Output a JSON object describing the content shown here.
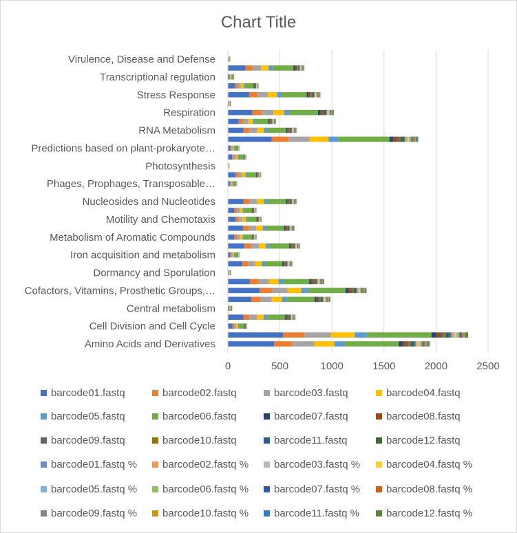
{
  "chart_data": {
    "type": "bar",
    "orientation": "horizontal",
    "stacked": true,
    "title": "Chart Title",
    "xlabel": "",
    "ylabel": "",
    "xlim": [
      0,
      2500
    ],
    "x_ticks": [
      "0",
      "500",
      "1000",
      "1500",
      "2000",
      "2500"
    ],
    "x_tick_values": [
      0,
      500,
      1000,
      1500,
      2000,
      2500
    ],
    "grid": "vertical",
    "legend_position": "bottom",
    "categories": [
      "Amino Acids and Derivatives",
      "",
      "Cell Division and Cell Cycle",
      "",
      "Central metabolism",
      "",
      "Cofactors, Vitamins, Prosthetic Groups,…",
      "",
      "Dormancy and Sporulation",
      "",
      "Iron acquisition and metabolism",
      "",
      "Metabolism of Aromatic Compounds",
      "",
      "Motility and Chemotaxis",
      "",
      "Nucleosides and Nucleotides",
      "",
      "Phages, Prophages, Transposable…",
      "",
      "Photosynthesis",
      "",
      "Predictions based on plant-prokaryote…",
      "",
      "RNA Metabolism",
      "",
      "Respiration",
      "",
      "Stress Response",
      "",
      "Transcriptional regulation",
      "",
      "Virulence, Disease and Defense"
    ],
    "series": [
      {
        "name": "barcode01.fastq",
        "color": "#4472C4",
        "values": [
          444,
          529,
          43,
          149,
          11,
          225,
          306,
          211,
          8,
          141,
          24,
          160,
          62,
          146,
          75,
          62,
          151,
          0,
          19,
          73,
          4,
          41,
          24,
          420,
          151,
          105,
          234,
          8,
          205,
          67,
          15,
          170,
          6
        ]
      },
      {
        "name": "barcode02.fastq",
        "color": "#ED7D31",
        "values": [
          174,
          207,
          17,
          58,
          4,
          88,
          120,
          83,
          3,
          55,
          10,
          62,
          24,
          57,
          29,
          24,
          59,
          0,
          8,
          29,
          2,
          16,
          10,
          164,
          59,
          41,
          92,
          3,
          80,
          26,
          6,
          67,
          2
        ]
      },
      {
        "name": "barcode03.fastq",
        "color": "#A5A5A5",
        "values": [
          212,
          253,
          20,
          71,
          5,
          108,
          146,
          101,
          4,
          68,
          12,
          76,
          30,
          70,
          36,
          30,
          72,
          0,
          9,
          35,
          2,
          19,
          12,
          201,
          72,
          50,
          112,
          4,
          98,
          32,
          7,
          81,
          3
        ]
      },
      {
        "name": "barcode04.fastq",
        "color": "#FFC000",
        "values": [
          193,
          230,
          19,
          65,
          5,
          98,
          133,
          92,
          3,
          62,
          11,
          69,
          27,
          64,
          32,
          27,
          66,
          0,
          8,
          32,
          2,
          18,
          11,
          183,
          66,
          46,
          102,
          3,
          89,
          29,
          6,
          74,
          3
        ]
      },
      {
        "name": "barcode05.fastq",
        "color": "#5B9BD5",
        "values": [
          97,
          115,
          9,
          32,
          2,
          49,
          66,
          46,
          2,
          31,
          5,
          35,
          14,
          32,
          16,
          13,
          33,
          0,
          4,
          16,
          1,
          9,
          5,
          91,
          33,
          23,
          51,
          2,
          45,
          15,
          3,
          37,
          1
        ]
      },
      {
        "name": "barcode06.fastq",
        "color": "#70AD47",
        "values": [
          521,
          622,
          50,
          175,
          12,
          264,
          359,
          248,
          9,
          166,
          29,
          187,
          73,
          171,
          87,
          73,
          177,
          0,
          23,
          86,
          5,
          48,
          29,
          493,
          177,
          123,
          275,
          9,
          241,
          79,
          17,
          200,
          7
        ]
      },
      {
        "name": "barcode07.fastq",
        "color": "#264478",
        "values": [
          39,
          46,
          4,
          13,
          1,
          20,
          27,
          18,
          1,
          12,
          2,
          14,
          5,
          13,
          6,
          5,
          13,
          0,
          2,
          6,
          0,
          4,
          2,
          37,
          13,
          9,
          20,
          1,
          18,
          6,
          1,
          15,
          1
        ]
      },
      {
        "name": "barcode08.fastq",
        "color": "#9E480E",
        "values": [
          29,
          35,
          3,
          10,
          1,
          15,
          20,
          14,
          0,
          9,
          2,
          10,
          4,
          10,
          5,
          4,
          10,
          0,
          1,
          5,
          0,
          3,
          2,
          27,
          10,
          7,
          15,
          0,
          13,
          4,
          1,
          11,
          0
        ]
      },
      {
        "name": "barcode09.fastq",
        "color": "#636363",
        "values": [
          29,
          35,
          3,
          10,
          1,
          15,
          20,
          14,
          0,
          9,
          2,
          10,
          4,
          10,
          5,
          4,
          10,
          0,
          1,
          5,
          0,
          3,
          2,
          27,
          10,
          7,
          15,
          0,
          13,
          4,
          1,
          11,
          0
        ]
      },
      {
        "name": "barcode10.fastq",
        "color": "#997300",
        "values": [
          19,
          23,
          2,
          6,
          0,
          10,
          13,
          9,
          0,
          6,
          1,
          7,
          3,
          6,
          3,
          3,
          7,
          0,
          1,
          3,
          0,
          2,
          1,
          18,
          7,
          5,
          10,
          0,
          9,
          3,
          1,
          7,
          0
        ]
      },
      {
        "name": "barcode11.fastq",
        "color": "#255E91",
        "values": [
          19,
          23,
          2,
          6,
          0,
          10,
          13,
          9,
          0,
          6,
          1,
          7,
          3,
          6,
          3,
          3,
          7,
          0,
          1,
          3,
          0,
          2,
          1,
          18,
          7,
          5,
          10,
          0,
          9,
          3,
          1,
          7,
          0
        ]
      },
      {
        "name": "barcode12.fastq",
        "color": "#43682B",
        "values": [
          19,
          23,
          2,
          6,
          0,
          10,
          13,
          9,
          0,
          6,
          1,
          7,
          3,
          6,
          3,
          3,
          7,
          0,
          1,
          3,
          0,
          2,
          1,
          18,
          7,
          5,
          10,
          0,
          9,
          3,
          1,
          7,
          0
        ]
      },
      {
        "name": "barcode01.fastq %",
        "color": "#698ED0",
        "values": [
          12,
          14,
          1,
          4,
          0,
          6,
          8,
          6,
          0,
          4,
          1,
          4,
          2,
          4,
          2,
          2,
          4,
          0,
          1,
          2,
          0,
          1,
          1,
          11,
          4,
          3,
          6,
          0,
          5,
          2,
          0,
          4,
          0
        ]
      },
      {
        "name": "barcode02.fastq %",
        "color": "#F1975A",
        "values": [
          12,
          14,
          1,
          4,
          0,
          6,
          8,
          6,
          0,
          4,
          1,
          4,
          2,
          4,
          2,
          2,
          4,
          0,
          1,
          2,
          0,
          1,
          1,
          11,
          4,
          3,
          6,
          0,
          5,
          2,
          0,
          4,
          0
        ]
      },
      {
        "name": "barcode03.fastq %",
        "color": "#B7B7B7",
        "values": [
          12,
          14,
          1,
          4,
          0,
          6,
          8,
          6,
          0,
          4,
          1,
          4,
          2,
          4,
          2,
          2,
          4,
          0,
          1,
          2,
          0,
          1,
          1,
          11,
          4,
          3,
          6,
          0,
          5,
          2,
          0,
          4,
          0
        ]
      },
      {
        "name": "barcode04.fastq %",
        "color": "#FFCD33",
        "values": [
          12,
          14,
          1,
          4,
          0,
          6,
          8,
          6,
          0,
          4,
          1,
          4,
          2,
          4,
          2,
          2,
          4,
          0,
          1,
          2,
          0,
          1,
          1,
          11,
          4,
          3,
          6,
          0,
          5,
          2,
          0,
          4,
          0
        ]
      },
      {
        "name": "barcode05.fastq %",
        "color": "#7CAFDD",
        "values": [
          12,
          14,
          1,
          4,
          0,
          6,
          8,
          6,
          0,
          4,
          1,
          4,
          2,
          4,
          2,
          2,
          4,
          0,
          1,
          2,
          0,
          1,
          1,
          11,
          4,
          3,
          6,
          0,
          5,
          2,
          0,
          4,
          0
        ]
      },
      {
        "name": "barcode06.fastq %",
        "color": "#8CC168",
        "values": [
          12,
          14,
          1,
          4,
          0,
          6,
          8,
          6,
          0,
          4,
          1,
          4,
          2,
          4,
          2,
          2,
          4,
          0,
          1,
          2,
          0,
          1,
          1,
          11,
          4,
          3,
          6,
          0,
          5,
          2,
          0,
          4,
          0
        ]
      },
      {
        "name": "barcode07.fastq %",
        "color": "#335AA1",
        "values": [
          12,
          14,
          1,
          4,
          0,
          6,
          8,
          6,
          0,
          4,
          1,
          4,
          2,
          4,
          2,
          2,
          4,
          0,
          1,
          2,
          0,
          1,
          1,
          11,
          4,
          3,
          6,
          0,
          5,
          2,
          0,
          4,
          0
        ]
      },
      {
        "name": "barcode08.fastq %",
        "color": "#D26012",
        "values": [
          12,
          14,
          1,
          4,
          0,
          6,
          8,
          6,
          0,
          4,
          1,
          4,
          2,
          4,
          2,
          2,
          4,
          0,
          1,
          2,
          0,
          1,
          1,
          11,
          4,
          3,
          6,
          0,
          5,
          2,
          0,
          4,
          0
        ]
      },
      {
        "name": "barcode09.fastq %",
        "color": "#848484",
        "values": [
          12,
          14,
          1,
          4,
          0,
          6,
          8,
          6,
          0,
          4,
          1,
          4,
          2,
          4,
          2,
          2,
          4,
          0,
          1,
          2,
          0,
          1,
          1,
          11,
          4,
          3,
          6,
          0,
          5,
          2,
          0,
          4,
          0
        ]
      },
      {
        "name": "barcode10.fastq %",
        "color": "#CC9A00",
        "values": [
          12,
          14,
          1,
          4,
          0,
          6,
          8,
          6,
          0,
          4,
          1,
          4,
          2,
          4,
          2,
          2,
          4,
          0,
          1,
          2,
          0,
          1,
          1,
          11,
          4,
          3,
          6,
          0,
          5,
          2,
          0,
          4,
          0
        ]
      },
      {
        "name": "barcode11.fastq %",
        "color": "#327DC2",
        "values": [
          12,
          14,
          1,
          4,
          0,
          6,
          8,
          6,
          0,
          4,
          1,
          4,
          2,
          4,
          2,
          2,
          4,
          0,
          1,
          2,
          0,
          1,
          1,
          11,
          4,
          3,
          6,
          0,
          5,
          2,
          0,
          4,
          0
        ]
      },
      {
        "name": "barcode12.fastq %",
        "color": "#5A8A39",
        "values": [
          12,
          14,
          1,
          4,
          0,
          6,
          8,
          6,
          0,
          4,
          1,
          4,
          2,
          4,
          2,
          2,
          4,
          0,
          1,
          2,
          0,
          1,
          1,
          11,
          4,
          3,
          6,
          0,
          5,
          2,
          0,
          4,
          0
        ]
      }
    ]
  }
}
